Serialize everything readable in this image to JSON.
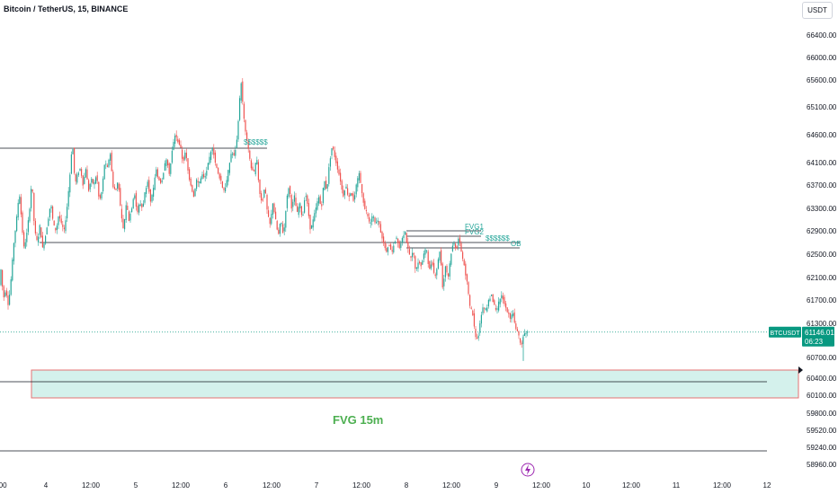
{
  "header": {
    "symbol_title": "Bitcoin / TetherUS, 15, BINANCE",
    "currency": "USDT"
  },
  "colors": {
    "up": "#26a69a",
    "down": "#ef5350",
    "zone_fill": "#d4f1ec",
    "zone_border": "#e57373",
    "accent": "#089981"
  },
  "price_tag": {
    "label": "BTCUSDT",
    "price": "61146.01",
    "countdown": "06:23"
  },
  "annotations": {
    "top_liquidity": "$$$$$$",
    "fvg1": "FVG1",
    "fvg2": "FVG2",
    "mid_liquidity": "$$$$$$",
    "ob": "OB",
    "fvg_15m": "FVG 15m"
  },
  "chart_data": {
    "type": "candlestick",
    "title": "Bitcoin / TetherUS, 15, BINANCE",
    "ylim": [
      58960,
      66400
    ],
    "y_ticks": [
      "66400.00",
      "66000.00",
      "65600.00",
      "65100.00",
      "64600.00",
      "64100.00",
      "63700.00",
      "63300.00",
      "62900.00",
      "62500.00",
      "62100.00",
      "61700.00",
      "61300.00",
      "60700.00",
      "60400.00",
      "60100.00",
      "59800.00",
      "59520.00",
      "59240.00",
      "58960.00"
    ],
    "x_ticks": [
      ":00",
      "4",
      "12:00",
      "5",
      "12:00",
      "6",
      "12:00",
      "7",
      "12:00",
      "8",
      "12:00",
      "9",
      "12:00",
      "10",
      "12:00",
      "11",
      "12:00",
      "12"
    ],
    "last_price": 61146.01,
    "price_path": [
      [
        0,
        61800
      ],
      [
        3,
        62300
      ],
      [
        5,
        61700
      ],
      [
        8,
        61900
      ],
      [
        11,
        61600
      ],
      [
        14,
        62100
      ],
      [
        17,
        62700
      ],
      [
        20,
        63100
      ],
      [
        23,
        63600
      ],
      [
        26,
        63000
      ],
      [
        28,
        62600
      ],
      [
        31,
        62800
      ],
      [
        34,
        63200
      ],
      [
        37,
        63800
      ],
      [
        40,
        62900
      ],
      [
        43,
        62700
      ],
      [
        46,
        63000
      ],
      [
        49,
        62600
      ],
      [
        52,
        62800
      ],
      [
        55,
        63100
      ],
      [
        58,
        63400
      ],
      [
        61,
        63000
      ],
      [
        64,
        62900
      ],
      [
        67,
        63200
      ],
      [
        70,
        63000
      ],
      [
        73,
        62900
      ],
      [
        76,
        63300
      ],
      [
        79,
        63800
      ],
      [
        82,
        64500
      ],
      [
        85,
        63700
      ],
      [
        88,
        63900
      ],
      [
        91,
        64000
      ],
      [
        94,
        63700
      ],
      [
        97,
        64000
      ],
      [
        100,
        63600
      ],
      [
        103,
        63800
      ],
      [
        106,
        63700
      ],
      [
        109,
        63900
      ],
      [
        112,
        63400
      ],
      [
        115,
        63600
      ],
      [
        118,
        64100
      ],
      [
        121,
        64000
      ],
      [
        124,
        64300
      ],
      [
        127,
        63700
      ],
      [
        130,
        63600
      ],
      [
        133,
        63800
      ],
      [
        136,
        63200
      ],
      [
        139,
        62900
      ],
      [
        142,
        63400
      ],
      [
        145,
        63100
      ],
      [
        148,
        63300
      ],
      [
        151,
        63600
      ],
      [
        154,
        63200
      ],
      [
        157,
        63400
      ],
      [
        160,
        63300
      ],
      [
        163,
        63600
      ],
      [
        166,
        63800
      ],
      [
        169,
        63400
      ],
      [
        172,
        63600
      ],
      [
        175,
        64000
      ],
      [
        178,
        63800
      ],
      [
        181,
        63700
      ],
      [
        184,
        64000
      ],
      [
        187,
        64200
      ],
      [
        190,
        63900
      ],
      [
        193,
        64300
      ],
      [
        196,
        64600
      ],
      [
        199,
        64500
      ],
      [
        202,
        64400
      ],
      [
        205,
        64100
      ],
      [
        208,
        64300
      ],
      [
        211,
        63900
      ],
      [
        214,
        63700
      ],
      [
        217,
        63500
      ],
      [
        220,
        63800
      ],
      [
        223,
        63700
      ],
      [
        226,
        63900
      ],
      [
        229,
        63800
      ],
      [
        232,
        64000
      ],
      [
        235,
        64200
      ],
      [
        238,
        64400
      ],
      [
        241,
        64100
      ],
      [
        244,
        63900
      ],
      [
        247,
        63800
      ],
      [
        250,
        63600
      ],
      [
        253,
        63700
      ],
      [
        256,
        64000
      ],
      [
        259,
        64300
      ],
      [
        262,
        64200
      ],
      [
        265,
        64500
      ],
      [
        268,
        65200
      ],
      [
        270,
        65600
      ],
      [
        272,
        65000
      ],
      [
        275,
        64600
      ],
      [
        278,
        64300
      ],
      [
        281,
        64000
      ],
      [
        284,
        63900
      ],
      [
        287,
        64200
      ],
      [
        290,
        63600
      ],
      [
        293,
        63400
      ],
      [
        296,
        63700
      ],
      [
        299,
        63200
      ],
      [
        302,
        63000
      ],
      [
        305,
        63400
      ],
      [
        308,
        63100
      ],
      [
        311,
        62800
      ],
      [
        314,
        63100
      ],
      [
        317,
        62800
      ],
      [
        320,
        63400
      ],
      [
        323,
        63700
      ],
      [
        326,
        63300
      ],
      [
        329,
        63500
      ],
      [
        332,
        63200
      ],
      [
        335,
        63400
      ],
      [
        338,
        63100
      ],
      [
        341,
        63600
      ],
      [
        344,
        63300
      ],
      [
        347,
        62900
      ],
      [
        350,
        63100
      ],
      [
        353,
        63300
      ],
      [
        356,
        63500
      ],
      [
        359,
        63300
      ],
      [
        362,
        63800
      ],
      [
        365,
        63600
      ],
      [
        368,
        64100
      ],
      [
        371,
        64400
      ],
      [
        374,
        64200
      ],
      [
        377,
        64000
      ],
      [
        380,
        63800
      ],
      [
        383,
        63500
      ],
      [
        386,
        63700
      ],
      [
        389,
        63500
      ],
      [
        392,
        63600
      ],
      [
        395,
        63400
      ],
      [
        398,
        63700
      ],
      [
        401,
        63900
      ],
      [
        404,
        63600
      ],
      [
        407,
        63300
      ],
      [
        410,
        63200
      ],
      [
        413,
        63000
      ],
      [
        416,
        63200
      ],
      [
        419,
        63000
      ],
      [
        422,
        63100
      ],
      [
        425,
        62900
      ],
      [
        428,
        62700
      ],
      [
        431,
        62500
      ],
      [
        434,
        62700
      ],
      [
        437,
        62500
      ],
      [
        440,
        62700
      ],
      [
        443,
        62800
      ],
      [
        446,
        62600
      ],
      [
        449,
        62800
      ],
      [
        452,
        62900
      ],
      [
        455,
        62600
      ],
      [
        458,
        62400
      ],
      [
        461,
        62600
      ],
      [
        464,
        62200
      ],
      [
        467,
        62400
      ],
      [
        470,
        62300
      ],
      [
        473,
        62500
      ],
      [
        476,
        62600
      ],
      [
        479,
        62200
      ],
      [
        482,
        62400
      ],
      [
        485,
        62100
      ],
      [
        488,
        62300
      ],
      [
        491,
        62600
      ],
      [
        494,
        61900
      ],
      [
        497,
        62300
      ],
      [
        500,
        62100
      ],
      [
        503,
        62500
      ],
      [
        506,
        62700
      ],
      [
        509,
        62600
      ],
      [
        512,
        62800
      ],
      [
        515,
        62500
      ],
      [
        518,
        62300
      ],
      [
        521,
        62000
      ],
      [
        524,
        61600
      ],
      [
        527,
        61500
      ],
      [
        530,
        61100
      ],
      [
        533,
        61000
      ],
      [
        536,
        61400
      ],
      [
        539,
        61600
      ],
      [
        542,
        61500
      ],
      [
        545,
        61700
      ],
      [
        548,
        61800
      ],
      [
        551,
        61600
      ],
      [
        554,
        61500
      ],
      [
        557,
        61700
      ],
      [
        560,
        61800
      ],
      [
        563,
        61600
      ],
      [
        566,
        61500
      ],
      [
        569,
        61400
      ],
      [
        572,
        61500
      ],
      [
        575,
        61200
      ],
      [
        578,
        61100
      ],
      [
        581,
        60900
      ],
      [
        584,
        61100
      ],
      [
        587,
        61150
      ]
    ]
  }
}
